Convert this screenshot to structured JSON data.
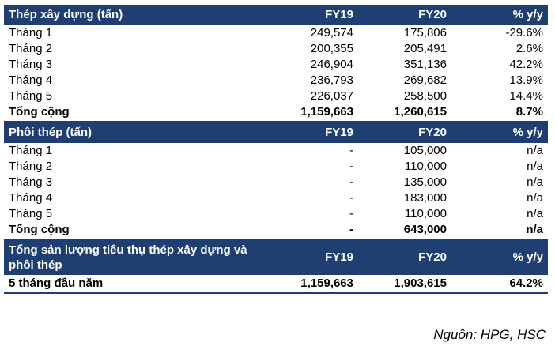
{
  "section1": {
    "header": {
      "label": "Thép xây dựng (tấn)",
      "fy19": "FY19",
      "fy20": "FY20",
      "yoy": "% y/y"
    },
    "rows": [
      {
        "label": "Tháng 1",
        "fy19": "249,574",
        "fy20": "175,806",
        "yoy": "-29.6%"
      },
      {
        "label": "Tháng 2",
        "fy19": "200,355",
        "fy20": "205,491",
        "yoy": "2.6%"
      },
      {
        "label": "Tháng 3",
        "fy19": "246,904",
        "fy20": "351,136",
        "yoy": "42.2%"
      },
      {
        "label": "Tháng 4",
        "fy19": "236,793",
        "fy20": "269,682",
        "yoy": "13.9%"
      },
      {
        "label": "Tháng 5",
        "fy19": "226,037",
        "fy20": "258,500",
        "yoy": "14.4%"
      }
    ],
    "total": {
      "label": "Tổng cộng",
      "fy19": "1,159,663",
      "fy20": "1,260,615",
      "yoy": "8.7%"
    }
  },
  "section2": {
    "header": {
      "label": "Phôi thép (tấn)",
      "fy19": "FY19",
      "fy20": "FY20",
      "yoy": "% y/y"
    },
    "rows": [
      {
        "label": "Tháng 1",
        "fy19": "-",
        "fy20": "105,000",
        "yoy": "n/a"
      },
      {
        "label": "Tháng 2",
        "fy19": "-",
        "fy20": "110,000",
        "yoy": "n/a"
      },
      {
        "label": "Tháng 3",
        "fy19": "-",
        "fy20": "135,000",
        "yoy": "n/a"
      },
      {
        "label": "Tháng 4",
        "fy19": "-",
        "fy20": "183,000",
        "yoy": "n/a"
      },
      {
        "label": "Tháng 5",
        "fy19": "-",
        "fy20": "110,000",
        "yoy": "n/a"
      }
    ],
    "total": {
      "label": "Tổng cộng",
      "fy19": "-",
      "fy20": "643,000",
      "yoy": "n/a"
    }
  },
  "section3": {
    "header": {
      "label": "Tổng sản lượng tiêu thụ thép xây dựng và phôi thép",
      "fy19": "FY19",
      "fy20": "FY20",
      "yoy": "% y/y"
    },
    "total": {
      "label": "5 tháng đầu năm",
      "fy19": "1,159,663",
      "fy20": "1,903,615",
      "yoy": "64.2%"
    }
  },
  "source": "Nguồn: HPG, HSC",
  "colors": {
    "header_bg": "#1f3f73",
    "header_text": "#ffffff"
  }
}
